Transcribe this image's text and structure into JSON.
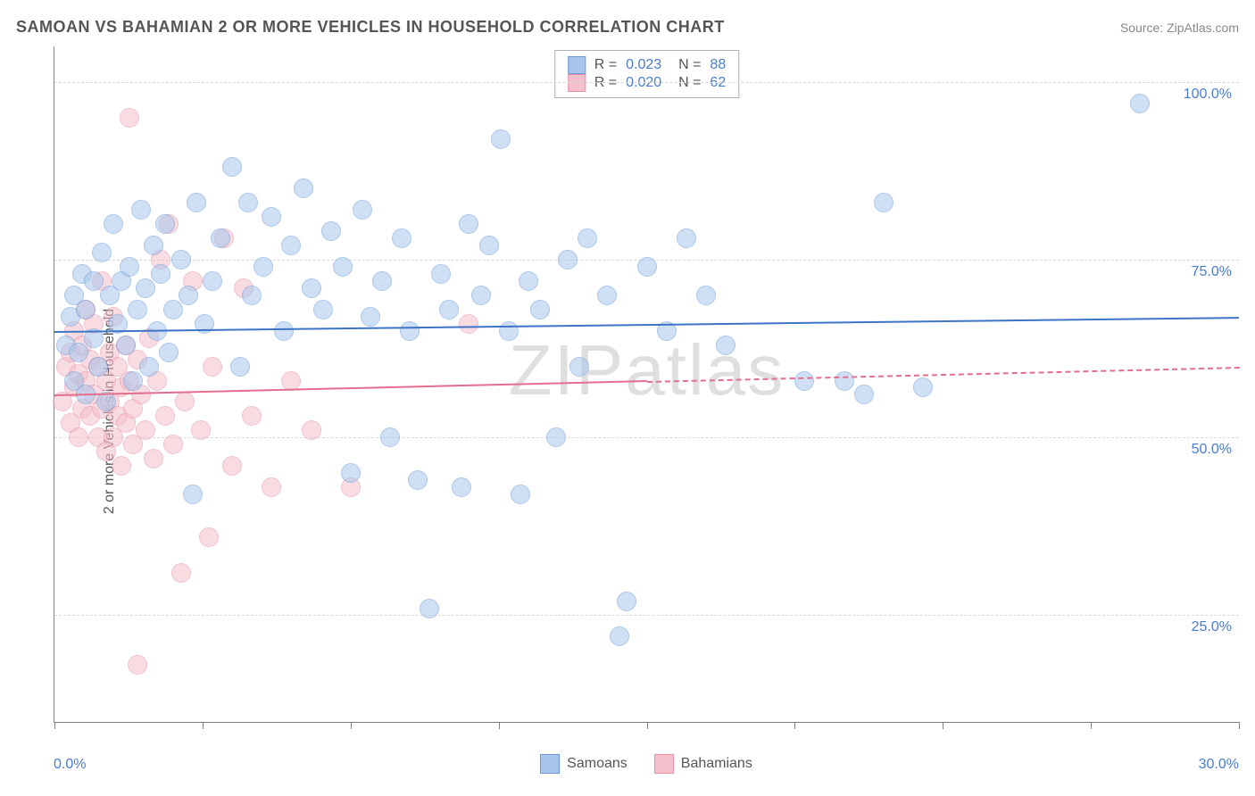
{
  "title": "SAMOAN VS BAHAMIAN 2 OR MORE VEHICLES IN HOUSEHOLD CORRELATION CHART",
  "source": "Source: ZipAtlas.com",
  "ylabel": "2 or more Vehicles in Household",
  "watermark": "ZIPatlas",
  "chart": {
    "type": "scatter",
    "xlim": [
      0,
      30
    ],
    "ylim": [
      10,
      105
    ],
    "xticks": [
      0,
      3.75,
      7.5,
      11.25,
      15,
      18.75,
      22.5,
      26.25,
      30
    ],
    "xtick_labels_shown": {
      "0": "0.0%",
      "30": "30.0%"
    },
    "yticks": [
      25,
      50,
      75,
      100
    ],
    "ytick_labels": [
      "25.0%",
      "50.0%",
      "75.0%",
      "100.0%"
    ],
    "grid_color": "#d8d8d8",
    "axis_color": "#808080",
    "background_color": "#ffffff",
    "point_radius": 11,
    "point_opacity": 0.55,
    "series": [
      {
        "name": "Samoans",
        "color_fill": "#a8c6ec",
        "color_stroke": "#6a9bd8",
        "trend": {
          "y_at_x0": 65,
          "y_at_x30": 67,
          "color": "#3d74c6",
          "width": 2,
          "dash_after_x": null
        },
        "stats": {
          "R": "0.023",
          "N": "88"
        },
        "points": [
          [
            0.3,
            63
          ],
          [
            0.4,
            67
          ],
          [
            0.5,
            58
          ],
          [
            0.5,
            70
          ],
          [
            0.6,
            62
          ],
          [
            0.7,
            73
          ],
          [
            0.8,
            56
          ],
          [
            0.8,
            68
          ],
          [
            1.0,
            72
          ],
          [
            1.0,
            64
          ],
          [
            1.1,
            60
          ],
          [
            1.2,
            76
          ],
          [
            1.3,
            55
          ],
          [
            1.4,
            70
          ],
          [
            1.5,
            80
          ],
          [
            1.6,
            66
          ],
          [
            1.7,
            72
          ],
          [
            1.8,
            63
          ],
          [
            1.9,
            74
          ],
          [
            2.0,
            58
          ],
          [
            2.1,
            68
          ],
          [
            2.2,
            82
          ],
          [
            2.3,
            71
          ],
          [
            2.4,
            60
          ],
          [
            2.5,
            77
          ],
          [
            2.6,
            65
          ],
          [
            2.7,
            73
          ],
          [
            2.8,
            80
          ],
          [
            2.9,
            62
          ],
          [
            3.0,
            68
          ],
          [
            3.2,
            75
          ],
          [
            3.4,
            70
          ],
          [
            3.5,
            42
          ],
          [
            3.6,
            83
          ],
          [
            3.8,
            66
          ],
          [
            4.0,
            72
          ],
          [
            4.2,
            78
          ],
          [
            4.5,
            88
          ],
          [
            4.7,
            60
          ],
          [
            4.9,
            83
          ],
          [
            5.0,
            70
          ],
          [
            5.3,
            74
          ],
          [
            5.5,
            81
          ],
          [
            5.8,
            65
          ],
          [
            6.0,
            77
          ],
          [
            6.3,
            85
          ],
          [
            6.5,
            71
          ],
          [
            6.8,
            68
          ],
          [
            7.0,
            79
          ],
          [
            7.3,
            74
          ],
          [
            7.5,
            45
          ],
          [
            7.8,
            82
          ],
          [
            8.0,
            67
          ],
          [
            8.3,
            72
          ],
          [
            8.5,
            50
          ],
          [
            8.8,
            78
          ],
          [
            9.0,
            65
          ],
          [
            9.2,
            44
          ],
          [
            9.5,
            26
          ],
          [
            9.8,
            73
          ],
          [
            10.0,
            68
          ],
          [
            10.3,
            43
          ],
          [
            10.5,
            80
          ],
          [
            10.8,
            70
          ],
          [
            11.0,
            77
          ],
          [
            11.3,
            92
          ],
          [
            11.5,
            65
          ],
          [
            11.8,
            42
          ],
          [
            12.0,
            72
          ],
          [
            12.3,
            68
          ],
          [
            12.7,
            50
          ],
          [
            13.0,
            75
          ],
          [
            13.3,
            60
          ],
          [
            13.5,
            78
          ],
          [
            14.0,
            70
          ],
          [
            14.3,
            22
          ],
          [
            14.5,
            27
          ],
          [
            15.0,
            74
          ],
          [
            15.5,
            65
          ],
          [
            16.0,
            78
          ],
          [
            16.5,
            70
          ],
          [
            17.0,
            63
          ],
          [
            19.0,
            58
          ],
          [
            20.0,
            58
          ],
          [
            20.5,
            56
          ],
          [
            21.0,
            83
          ],
          [
            22.0,
            57
          ],
          [
            27.5,
            97
          ]
        ]
      },
      {
        "name": "Bahamians",
        "color_fill": "#f4c0cc",
        "color_stroke": "#e690a6",
        "trend": {
          "y_at_x0": 56,
          "y_at_x30": 60,
          "color": "#e46e8e",
          "width": 2,
          "dash_after_x": 15
        },
        "stats": {
          "R": "0.020",
          "N": "62"
        },
        "points": [
          [
            0.2,
            55
          ],
          [
            0.3,
            60
          ],
          [
            0.4,
            52
          ],
          [
            0.4,
            62
          ],
          [
            0.5,
            57
          ],
          [
            0.5,
            65
          ],
          [
            0.6,
            50
          ],
          [
            0.6,
            59
          ],
          [
            0.7,
            63
          ],
          [
            0.7,
            54
          ],
          [
            0.8,
            58
          ],
          [
            0.8,
            68
          ],
          [
            0.9,
            53
          ],
          [
            0.9,
            61
          ],
          [
            1.0,
            56
          ],
          [
            1.0,
            66
          ],
          [
            1.1,
            50
          ],
          [
            1.1,
            60
          ],
          [
            1.2,
            54
          ],
          [
            1.2,
            72
          ],
          [
            1.3,
            58
          ],
          [
            1.3,
            48
          ],
          [
            1.4,
            62
          ],
          [
            1.4,
            55
          ],
          [
            1.5,
            50
          ],
          [
            1.5,
            67
          ],
          [
            1.6,
            53
          ],
          [
            1.6,
            60
          ],
          [
            1.7,
            57
          ],
          [
            1.7,
            46
          ],
          [
            1.8,
            63
          ],
          [
            1.8,
            52
          ],
          [
            1.9,
            58
          ],
          [
            1.9,
            95
          ],
          [
            2.0,
            54
          ],
          [
            2.0,
            49
          ],
          [
            2.1,
            61
          ],
          [
            2.1,
            18
          ],
          [
            2.2,
            56
          ],
          [
            2.3,
            51
          ],
          [
            2.4,
            64
          ],
          [
            2.5,
            47
          ],
          [
            2.6,
            58
          ],
          [
            2.7,
            75
          ],
          [
            2.8,
            53
          ],
          [
            2.9,
            80
          ],
          [
            3.0,
            49
          ],
          [
            3.2,
            31
          ],
          [
            3.3,
            55
          ],
          [
            3.5,
            72
          ],
          [
            3.7,
            51
          ],
          [
            3.9,
            36
          ],
          [
            4.0,
            60
          ],
          [
            4.3,
            78
          ],
          [
            4.5,
            46
          ],
          [
            4.8,
            71
          ],
          [
            5.0,
            53
          ],
          [
            5.5,
            43
          ],
          [
            6.0,
            58
          ],
          [
            6.5,
            51
          ],
          [
            7.5,
            43
          ],
          [
            10.5,
            66
          ]
        ]
      }
    ]
  },
  "legend": {
    "items": [
      {
        "label": "Samoans",
        "fill": "#a8c6ec",
        "stroke": "#6a9bd8"
      },
      {
        "label": "Bahamians",
        "fill": "#f4c0cc",
        "stroke": "#e690a6"
      }
    ]
  }
}
